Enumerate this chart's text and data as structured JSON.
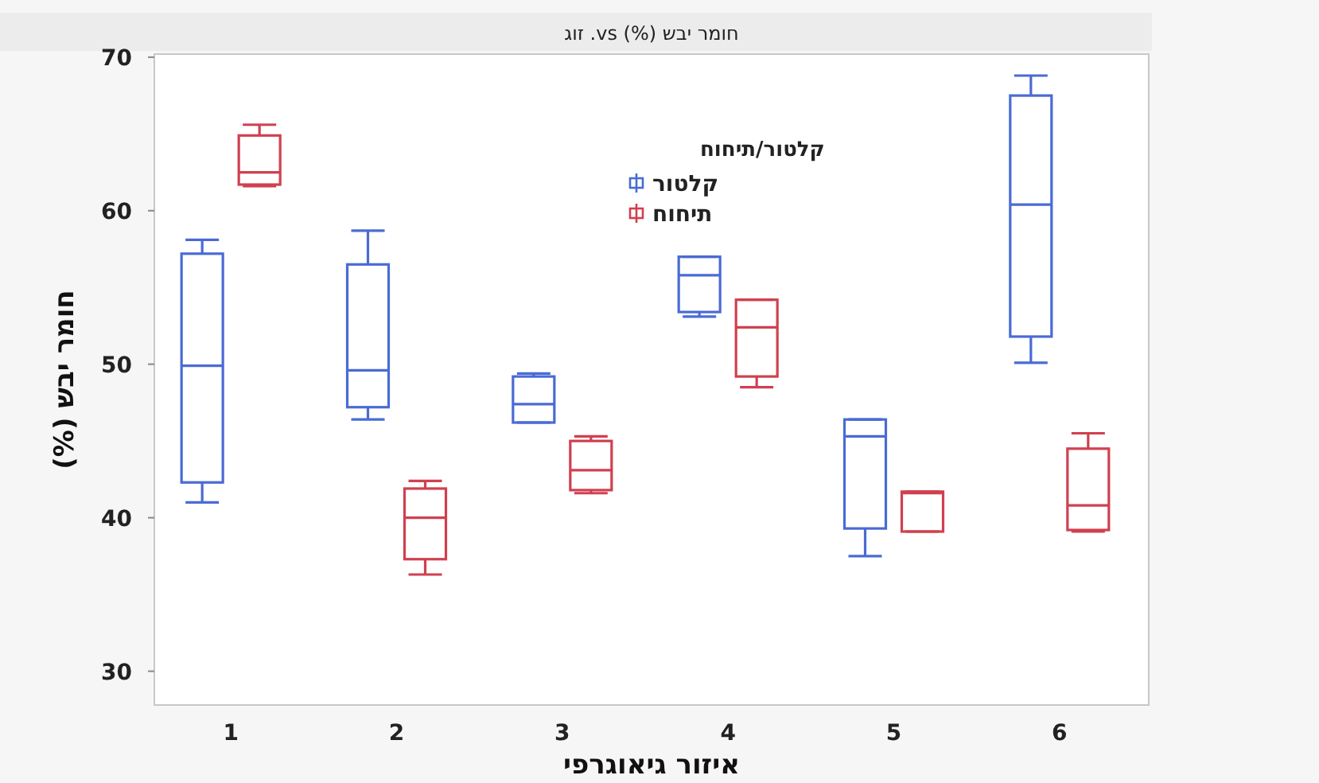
{
  "chart_data": {
    "type": "box",
    "title": "חומר יבש (%) vs. זוג",
    "xlabel": "איזור גיאוגרפי",
    "ylabel": "חומר יבש (%)",
    "legend_title": "קלטור/תיחוח",
    "legend": "top",
    "categories": [
      "1",
      "2",
      "3",
      "4",
      "5",
      "6"
    ],
    "ylim": [
      27.8,
      70.2
    ],
    "yticks": [
      30,
      40,
      50,
      60,
      70
    ],
    "series": [
      {
        "name": "קלטור",
        "color": "#4a6bd4",
        "boxes": [
          {
            "low": 41.0,
            "q1": 42.3,
            "median": 49.9,
            "q3": 57.2,
            "high": 58.1
          },
          {
            "low": 46.4,
            "q1": 47.2,
            "median": 49.6,
            "q3": 56.5,
            "high": 58.7
          },
          {
            "low": 46.2,
            "q1": 46.2,
            "median": 47.4,
            "q3": 49.2,
            "high": 49.4
          },
          {
            "low": 53.1,
            "q1": 53.4,
            "median": 55.8,
            "q3": 57.0,
            "high": 57.0
          },
          {
            "low": 37.5,
            "q1": 39.3,
            "median": 45.3,
            "q3": 46.4,
            "high": 46.4
          },
          {
            "low": 50.1,
            "q1": 51.8,
            "median": 60.4,
            "q3": 67.5,
            "high": 68.8
          }
        ]
      },
      {
        "name": "תיחוח",
        "color": "#d0404f",
        "boxes": [
          {
            "low": 61.6,
            "q1": 61.7,
            "median": 62.5,
            "q3": 64.9,
            "high": 65.6
          },
          {
            "low": 36.3,
            "q1": 37.3,
            "median": 40.0,
            "q3": 41.9,
            "high": 42.4
          },
          {
            "low": 41.6,
            "q1": 41.8,
            "median": 43.1,
            "q3": 45.0,
            "high": 45.3
          },
          {
            "low": 48.5,
            "q1": 49.2,
            "median": 52.4,
            "q3": 54.2,
            "high": 54.2
          },
          {
            "low": 39.1,
            "q1": 39.1,
            "median": 41.6,
            "q3": 41.7,
            "high": 41.7
          },
          {
            "low": 39.1,
            "q1": 39.2,
            "median": 40.8,
            "q3": 44.5,
            "high": 45.5
          }
        ]
      }
    ]
  }
}
